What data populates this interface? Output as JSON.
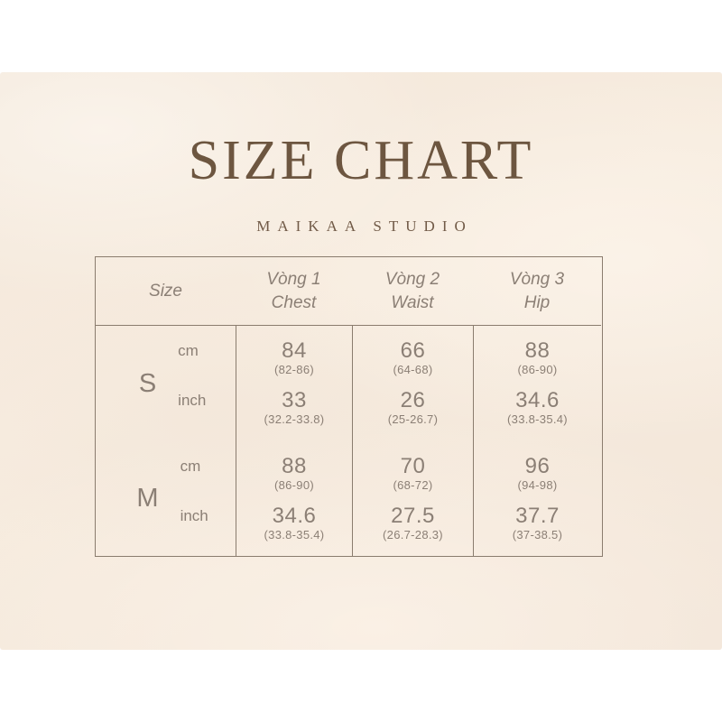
{
  "header": {
    "title": "SIZE CHART",
    "subtitle": "MAIKAA STUDIO"
  },
  "table": {
    "head": {
      "size": "Size",
      "col1": {
        "vi": "Vòng 1",
        "en": "Chest"
      },
      "col2": {
        "vi": "Vòng 2",
        "en": "Waist"
      },
      "col3": {
        "vi": "Vòng 3",
        "en": "Hip"
      }
    },
    "units": {
      "cm": "cm",
      "inch": "inch"
    },
    "sizes": {
      "s": {
        "label": "S",
        "chest": {
          "cm": "84",
          "cm_range": "(82-86)",
          "inch": "33",
          "inch_range": "(32.2-33.8)"
        },
        "waist": {
          "cm": "66",
          "cm_range": "(64-68)",
          "inch": "26",
          "inch_range": "(25-26.7)"
        },
        "hip": {
          "cm": "88",
          "cm_range": "(86-90)",
          "inch": "34.6",
          "inch_range": "(33.8-35.4)"
        }
      },
      "m": {
        "label": "M",
        "chest": {
          "cm": "88",
          "cm_range": "(86-90)",
          "inch": "34.6",
          "inch_range": "(33.8-35.4)"
        },
        "waist": {
          "cm": "70",
          "cm_range": "(68-72)",
          "inch": "27.5",
          "inch_range": "(26.7-28.3)"
        },
        "hip": {
          "cm": "96",
          "cm_range": "(94-98)",
          "inch": "37.7",
          "inch_range": "(37-38.5)"
        }
      }
    }
  },
  "colors": {
    "page_background": "#ffffff",
    "backdrop_cream": "#f5e9dc",
    "title_brown": "#6d5640",
    "table_ink": "#8b7f75",
    "table_line": "#8a7c6e"
  },
  "chart_data": {
    "type": "table",
    "title": "SIZE CHART",
    "subtitle": "MAIKAA STUDIO",
    "columns": [
      "Size",
      "Vòng 1 Chest",
      "Vòng 2 Waist",
      "Vòng 3 Hip"
    ],
    "rows": [
      {
        "size": "S",
        "unit": "cm",
        "chest": 84,
        "chest_range": "82-86",
        "waist": 66,
        "waist_range": "64-68",
        "hip": 88,
        "hip_range": "86-90"
      },
      {
        "size": "S",
        "unit": "inch",
        "chest": 33,
        "chest_range": "32.2-33.8",
        "waist": 26,
        "waist_range": "25-26.7",
        "hip": 34.6,
        "hip_range": "33.8-35.4"
      },
      {
        "size": "M",
        "unit": "cm",
        "chest": 88,
        "chest_range": "86-90",
        "waist": 70,
        "waist_range": "68-72",
        "hip": 96,
        "hip_range": "94-98"
      },
      {
        "size": "M",
        "unit": "inch",
        "chest": 34.6,
        "chest_range": "33.8-35.4",
        "waist": 27.5,
        "waist_range": "26.7-28.3",
        "hip": 37.7,
        "hip_range": "37-38.5"
      }
    ]
  }
}
